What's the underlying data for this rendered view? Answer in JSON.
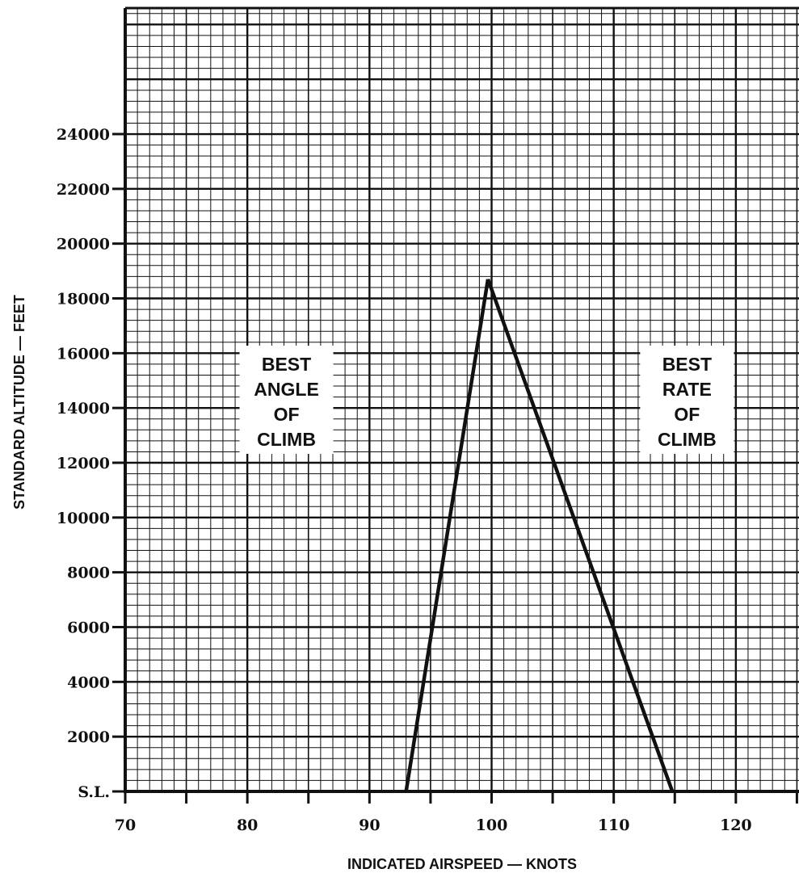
{
  "chart_data": {
    "type": "line",
    "xlabel": "INDICATED AIRSPEED — KNOTS",
    "ylabel": "STANDARD ALTITUDE — FEET",
    "xlim": [
      70,
      130
    ],
    "ylim": [
      0,
      28600
    ],
    "x_ticks": [
      {
        "value": 70,
        "label": "70"
      },
      {
        "value": 80,
        "label": "80"
      },
      {
        "value": 90,
        "label": "90"
      },
      {
        "value": 100,
        "label": "100"
      },
      {
        "value": 110,
        "label": "110"
      },
      {
        "value": 120,
        "label": "120"
      }
    ],
    "y_ticks": [
      {
        "value": 0,
        "label": "S.L."
      },
      {
        "value": 2000,
        "label": "2000"
      },
      {
        "value": 4000,
        "label": "4000"
      },
      {
        "value": 6000,
        "label": "6000"
      },
      {
        "value": 8000,
        "label": "8000"
      },
      {
        "value": 10000,
        "label": "10000"
      },
      {
        "value": 12000,
        "label": "12000"
      },
      {
        "value": 14000,
        "label": "14000"
      },
      {
        "value": 16000,
        "label": "16000"
      },
      {
        "value": 18000,
        "label": "18000"
      },
      {
        "value": 20000,
        "label": "20000"
      },
      {
        "value": 22000,
        "label": "22000"
      },
      {
        "value": 24000,
        "label": "24000"
      }
    ],
    "grid": true,
    "series": [
      {
        "x": [
          93,
          99.7
        ],
        "y": [
          0,
          18700
        ]
      },
      {
        "x": [
          99.7,
          114.8
        ],
        "y": [
          18700,
          0
        ]
      }
    ],
    "annotations": [
      {
        "lines": [
          "BEST",
          "ANGLE",
          "OF",
          "CLIMB"
        ],
        "x": 83.2,
        "y": 14300
      },
      {
        "lines": [
          "BEST",
          "RATE",
          "OF",
          "CLIMB"
        ],
        "x": 116,
        "y": 14300
      }
    ]
  }
}
